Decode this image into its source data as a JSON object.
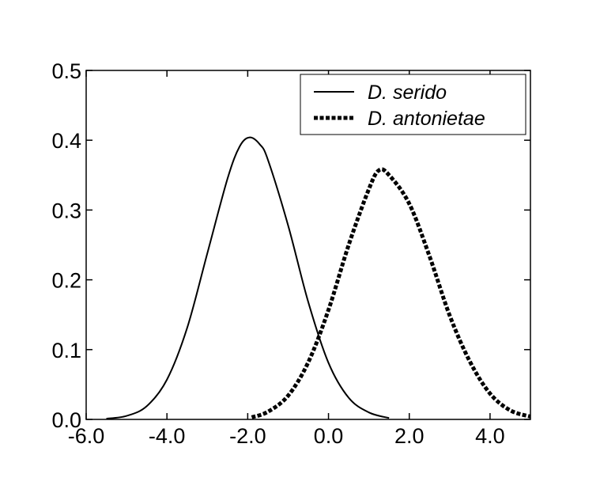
{
  "chart_data": {
    "type": "line",
    "title": "",
    "xlabel": "",
    "ylabel": "",
    "xlim": [
      -6.0,
      5.0
    ],
    "ylim": [
      0.0,
      0.5
    ],
    "x_ticks": [
      -6.0,
      -4.0,
      -2.0,
      0.0,
      2.0,
      4.0
    ],
    "x_tick_labels": [
      "-6.0",
      "-4.0",
      "-2.0",
      "0.0",
      "2.0",
      "4.0"
    ],
    "y_ticks": [
      0.0,
      0.1,
      0.2,
      0.3,
      0.4,
      0.5
    ],
    "y_tick_labels": [
      "0.0",
      "0.1",
      "0.2",
      "0.3",
      "0.4",
      "0.5"
    ],
    "grid": false,
    "legend_position": "top-right",
    "series": [
      {
        "name": "D. serido",
        "style": "solid",
        "color": "#000000",
        "x": [
          -5.5,
          -5.0,
          -4.5,
          -4.0,
          -3.5,
          -3.0,
          -2.5,
          -2.2,
          -1.95,
          -1.7,
          -1.5,
          -1.0,
          -0.5,
          0.0,
          0.5,
          1.0,
          1.5
        ],
        "y": [
          0.001,
          0.005,
          0.019,
          0.057,
          0.131,
          0.238,
          0.345,
          0.391,
          0.404,
          0.394,
          0.372,
          0.278,
          0.168,
          0.081,
          0.031,
          0.01,
          0.002
        ]
      },
      {
        "name": "D. antonietae",
        "style": "dashed",
        "color": "#000000",
        "x": [
          -1.9,
          -1.5,
          -1.0,
          -0.5,
          0.0,
          0.5,
          1.0,
          1.25,
          1.5,
          2.0,
          2.5,
          3.0,
          3.5,
          4.0,
          4.5,
          5.0
        ],
        "y": [
          0.003,
          0.011,
          0.034,
          0.082,
          0.157,
          0.25,
          0.33,
          0.357,
          0.35,
          0.309,
          0.234,
          0.149,
          0.083,
          0.037,
          0.013,
          0.004
        ]
      }
    ]
  }
}
